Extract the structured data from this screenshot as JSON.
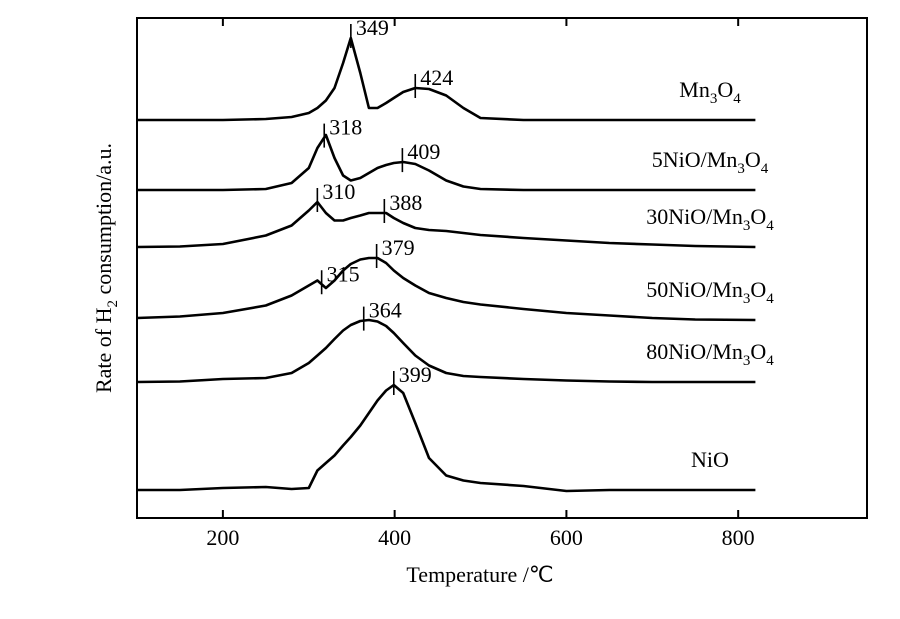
{
  "chart_data": {
    "type": "line",
    "xlabel": "Temperature /℃",
    "ylabel": "Rate of H2 consumption/a.u.",
    "xlim": [
      100,
      950
    ],
    "xticks": [
      200,
      400,
      600,
      800
    ],
    "ylim": [
      0,
      100
    ],
    "x": [
      100,
      150,
      200,
      250,
      280,
      300,
      310,
      320,
      330,
      340,
      349,
      360,
      370,
      380,
      390,
      399,
      410,
      424,
      440,
      460,
      480,
      500,
      550,
      600,
      650,
      700,
      750,
      820
    ],
    "series": [
      {
        "name": "Mn3O4",
        "color": "#000000",
        "peaks": [
          349,
          424
        ],
        "values": [
          79.6,
          79.6,
          79.6,
          79.8,
          80.2,
          81,
          82,
          83.5,
          86,
          91,
          96,
          89,
          82,
          82,
          83,
          84,
          85.2,
          86,
          85.8,
          84.5,
          82,
          80,
          79.6,
          79.6,
          79.6,
          79.6,
          79.6,
          79.6
        ]
      },
      {
        "name": "5NiO/Mn3O4",
        "color": "#000000",
        "peaks": [
          318,
          409
        ],
        "values": [
          65.6,
          65.6,
          65.6,
          65.8,
          67,
          70,
          74,
          76.6,
          72,
          68.5,
          67.5,
          68,
          69,
          70,
          70.6,
          71,
          71.2,
          70.8,
          69.5,
          67.5,
          66.3,
          65.8,
          65.6,
          65.6,
          65.6,
          65.6,
          65.6,
          65.6
        ]
      },
      {
        "name": "30NiO/Mn3O4",
        "color": "#000000",
        "peaks": [
          310,
          388
        ],
        "values": [
          54.2,
          54.3,
          54.8,
          56.5,
          58.5,
          61.5,
          63.2,
          61,
          59.5,
          59.5,
          60,
          60.5,
          61,
          61,
          61,
          60,
          59,
          58,
          57.6,
          57.4,
          57,
          56.6,
          56,
          55.5,
          55,
          54.7,
          54.4,
          54.2
        ]
      },
      {
        "name": "50NiO/Mn3O4",
        "color": "#000000",
        "peaks": [
          315,
          379
        ],
        "values": [
          40,
          40.3,
          41,
          42.5,
          44.5,
          46.5,
          47.5,
          46,
          47.5,
          49.5,
          50.8,
          51.7,
          52,
          52,
          51,
          49.5,
          48,
          46.5,
          45,
          44,
          43.2,
          42.7,
          41.8,
          41,
          40.5,
          40,
          39.7,
          39.6
        ]
      },
      {
        "name": "80NiO/Mn3O4",
        "color": "#000000",
        "peaks": [
          364
        ],
        "values": [
          27.2,
          27.3,
          27.8,
          28,
          29,
          31,
          32.5,
          34,
          35.8,
          37.5,
          38.6,
          39.4,
          39.6,
          39.3,
          38.4,
          37,
          35,
          32.5,
          30.5,
          29,
          28.4,
          28.2,
          27.8,
          27.5,
          27.3,
          27.2,
          27.2,
          27.2
        ]
      },
      {
        "name": "NiO",
        "color": "#000000",
        "peaks": [
          399
        ],
        "values": [
          5.6,
          5.6,
          6,
          6.2,
          5.8,
          6,
          9.5,
          11,
          12.5,
          14.5,
          16.2,
          18.5,
          21,
          23.5,
          25.5,
          26.6,
          25,
          19,
          12,
          8.5,
          7.5,
          7,
          6.4,
          5.4,
          5.6,
          5.6,
          5.6,
          5.6
        ]
      }
    ]
  }
}
